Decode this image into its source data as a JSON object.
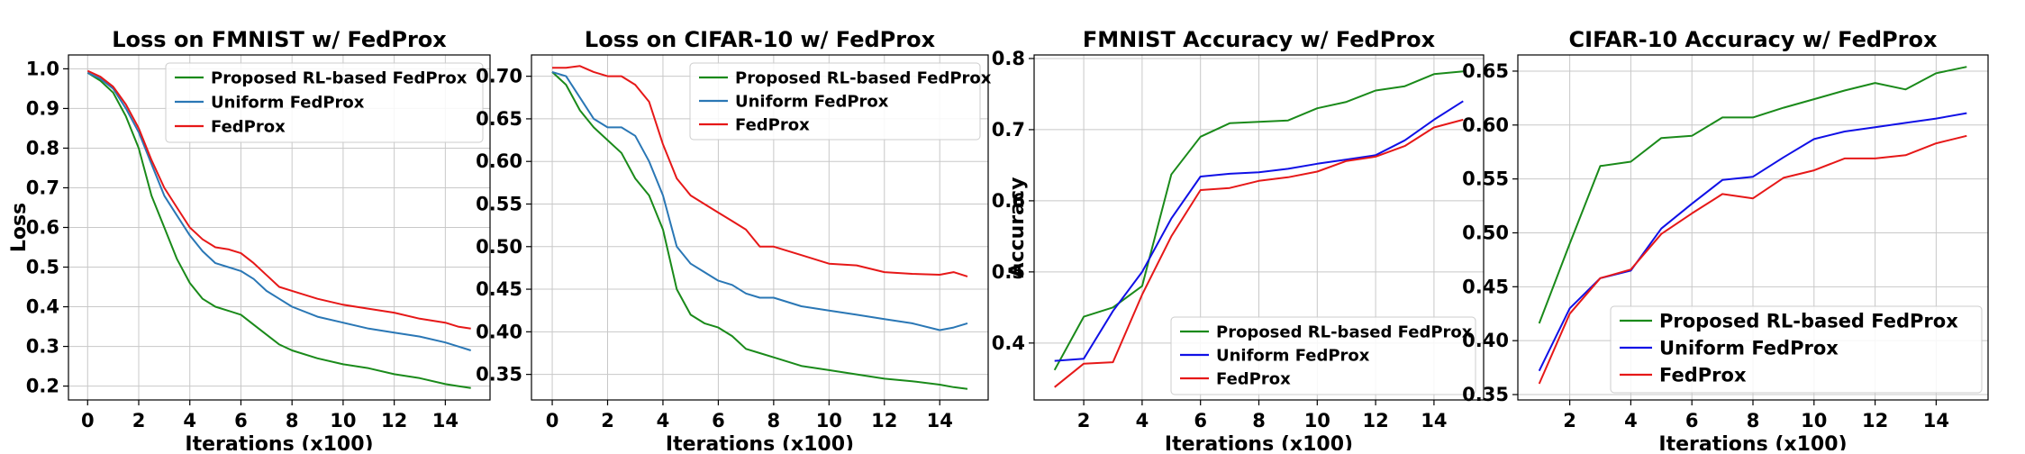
{
  "colors": {
    "proposed": "#1a8a1a",
    "uniform_steel": "#2a77b5",
    "uniform_blue": "#1010e6",
    "fedprox": "#e61818",
    "grid": "#c8c8c8",
    "axis": "#000000"
  },
  "chart_data": [
    {
      "type": "line",
      "title": "Loss on FMNIST w/ FedProx",
      "xlabel": "Iterations (x100)",
      "ylabel": "Loss",
      "xlim": [
        -0.75,
        15.75
      ],
      "ylim": [
        0.165,
        1.035
      ],
      "xticks": [
        0,
        2,
        4,
        6,
        8,
        10,
        12,
        14
      ],
      "yticks": [
        0.2,
        0.3,
        0.4,
        0.5,
        0.6,
        0.7,
        0.8,
        0.9,
        1.0
      ],
      "ytick_labels": [
        "0.2",
        "0.3",
        "0.4",
        "0.5",
        "0.6",
        "0.7",
        "0.8",
        "0.9",
        "1.0"
      ],
      "legend_position": "top-right",
      "series": [
        {
          "name": "Proposed RL-based FedProx",
          "color": "#1a8a1a",
          "x": [
            0,
            0.5,
            1,
            1.5,
            2,
            2.5,
            3,
            3.5,
            4,
            4.5,
            5,
            5.5,
            6,
            6.5,
            7,
            7.5,
            8,
            9,
            10,
            11,
            12,
            13,
            14,
            14.5,
            15
          ],
          "y": [
            0.99,
            0.97,
            0.94,
            0.88,
            0.8,
            0.68,
            0.6,
            0.52,
            0.46,
            0.42,
            0.4,
            0.39,
            0.38,
            0.355,
            0.33,
            0.305,
            0.29,
            0.27,
            0.255,
            0.245,
            0.23,
            0.22,
            0.205,
            0.2,
            0.195
          ]
        },
        {
          "name": "Uniform FedProx",
          "color": "#2a77b5",
          "x": [
            0,
            0.5,
            1,
            1.5,
            2,
            2.5,
            3,
            3.5,
            4,
            4.5,
            5,
            5.5,
            6,
            6.5,
            7,
            7.5,
            8,
            9,
            10,
            11,
            12,
            13,
            14,
            14.5,
            15
          ],
          "y": [
            0.99,
            0.975,
            0.95,
            0.9,
            0.84,
            0.76,
            0.68,
            0.63,
            0.58,
            0.54,
            0.51,
            0.5,
            0.49,
            0.47,
            0.44,
            0.42,
            0.4,
            0.375,
            0.36,
            0.345,
            0.335,
            0.325,
            0.31,
            0.3,
            0.29
          ]
        },
        {
          "name": "FedProx",
          "color": "#e61818",
          "x": [
            0,
            0.5,
            1,
            1.5,
            2,
            2.5,
            3,
            3.5,
            4,
            4.5,
            5,
            5.5,
            6,
            6.5,
            7,
            7.5,
            8,
            9,
            10,
            11,
            12,
            13,
            14,
            14.5,
            15
          ],
          "y": [
            0.995,
            0.98,
            0.955,
            0.91,
            0.85,
            0.77,
            0.7,
            0.65,
            0.6,
            0.57,
            0.55,
            0.545,
            0.535,
            0.51,
            0.48,
            0.45,
            0.44,
            0.42,
            0.405,
            0.395,
            0.385,
            0.37,
            0.36,
            0.35,
            0.345
          ]
        }
      ]
    },
    {
      "type": "line",
      "title": "Loss on CIFAR-10 w/ FedProx",
      "xlabel": "Iterations (x100)",
      "ylabel": "",
      "xlim": [
        -0.75,
        15.75
      ],
      "ylim": [
        0.32,
        0.725
      ],
      "xticks": [
        0,
        2,
        4,
        6,
        8,
        10,
        12,
        14
      ],
      "yticks": [
        0.35,
        0.4,
        0.45,
        0.5,
        0.55,
        0.6,
        0.65,
        0.7
      ],
      "ytick_labels": [
        "0.35",
        "0.40",
        "0.45",
        "0.50",
        "0.55",
        "0.60",
        "0.65",
        "0.70"
      ],
      "legend_position": "top-right",
      "series": [
        {
          "name": "Proposed RL-based FedProx",
          "color": "#1a8a1a",
          "x": [
            0,
            0.5,
            1,
            1.5,
            2,
            2.5,
            3,
            3.5,
            4,
            4.5,
            5,
            5.5,
            6,
            6.5,
            7,
            7.5,
            8,
            9,
            10,
            11,
            12,
            13,
            14,
            14.5,
            15
          ],
          "y": [
            0.705,
            0.69,
            0.66,
            0.64,
            0.625,
            0.61,
            0.58,
            0.56,
            0.52,
            0.45,
            0.42,
            0.41,
            0.405,
            0.395,
            0.38,
            0.375,
            0.37,
            0.36,
            0.355,
            0.35,
            0.345,
            0.342,
            0.338,
            0.335,
            0.333
          ]
        },
        {
          "name": "Uniform FedProx",
          "color": "#2a77b5",
          "x": [
            0,
            0.5,
            1,
            1.5,
            2,
            2.5,
            3,
            3.5,
            4,
            4.5,
            5,
            5.5,
            6,
            6.5,
            7,
            7.5,
            8,
            9,
            10,
            11,
            12,
            13,
            14,
            14.5,
            15
          ],
          "y": [
            0.705,
            0.7,
            0.675,
            0.65,
            0.64,
            0.64,
            0.63,
            0.6,
            0.56,
            0.5,
            0.48,
            0.47,
            0.46,
            0.455,
            0.445,
            0.44,
            0.44,
            0.43,
            0.425,
            0.42,
            0.415,
            0.41,
            0.402,
            0.405,
            0.41
          ]
        },
        {
          "name": "FedProx",
          "color": "#e61818",
          "x": [
            0,
            0.5,
            1,
            1.5,
            2,
            2.5,
            3,
            3.5,
            4,
            4.5,
            5,
            5.5,
            6,
            6.5,
            7,
            7.5,
            8,
            9,
            10,
            11,
            12,
            13,
            14,
            14.5,
            15
          ],
          "y": [
            0.71,
            0.71,
            0.712,
            0.705,
            0.7,
            0.7,
            0.69,
            0.67,
            0.62,
            0.58,
            0.56,
            0.55,
            0.54,
            0.53,
            0.52,
            0.5,
            0.5,
            0.49,
            0.48,
            0.478,
            0.47,
            0.468,
            0.467,
            0.47,
            0.465
          ]
        }
      ]
    },
    {
      "type": "line",
      "title": "FMNIST Accuracy w/ FedProx",
      "xlabel": "Iterations (x100)",
      "ylabel": "Accuracy",
      "xlim": [
        0.3,
        15.7
      ],
      "ylim": [
        0.32,
        0.805
      ],
      "xticks": [
        2,
        4,
        6,
        8,
        10,
        12,
        14
      ],
      "yticks": [
        0.4,
        0.5,
        0.6,
        0.7,
        0.8
      ],
      "ytick_labels": [
        "0.4",
        "0.5",
        "0.6",
        "0.7",
        "0.8"
      ],
      "legend_position": "lower-right",
      "series": [
        {
          "name": "Proposed RL-based FedProx",
          "color": "#1a8a1a",
          "x": [
            1,
            2,
            3,
            4,
            5,
            6,
            7,
            8,
            9,
            10,
            11,
            12,
            13,
            14,
            15
          ],
          "y": [
            0.362,
            0.437,
            0.45,
            0.48,
            0.637,
            0.69,
            0.709,
            0.711,
            0.713,
            0.73,
            0.739,
            0.755,
            0.761,
            0.778,
            0.782
          ]
        },
        {
          "name": "Uniform FedProx",
          "color": "#1010e6",
          "x": [
            1,
            2,
            3,
            4,
            5,
            6,
            7,
            8,
            9,
            10,
            11,
            12,
            13,
            14,
            15
          ],
          "y": [
            0.375,
            0.378,
            0.445,
            0.5,
            0.575,
            0.634,
            0.638,
            0.64,
            0.645,
            0.652,
            0.658,
            0.664,
            0.685,
            0.714,
            0.74
          ]
        },
        {
          "name": "FedProx",
          "color": "#e61818",
          "x": [
            1,
            2,
            3,
            4,
            5,
            6,
            7,
            8,
            9,
            10,
            11,
            12,
            13,
            14,
            15
          ],
          "y": [
            0.338,
            0.371,
            0.373,
            0.468,
            0.55,
            0.615,
            0.618,
            0.628,
            0.633,
            0.641,
            0.656,
            0.662,
            0.677,
            0.703,
            0.714
          ]
        }
      ]
    },
    {
      "type": "line",
      "title": "CIFAR-10 Accuracy w/ FedProx",
      "xlabel": "Iterations (x100)",
      "ylabel": "",
      "xlim": [
        0.3,
        15.7
      ],
      "ylim": [
        0.345,
        0.665
      ],
      "xticks": [
        2,
        4,
        6,
        8,
        10,
        12,
        14
      ],
      "yticks": [
        0.35,
        0.4,
        0.45,
        0.5,
        0.55,
        0.6,
        0.65
      ],
      "ytick_labels": [
        "0.35",
        "0.40",
        "0.45",
        "0.50",
        "0.55",
        "0.60",
        "0.65"
      ],
      "legend_position": "lower-right",
      "series": [
        {
          "name": "Proposed RL-based FedProx",
          "color": "#1a8a1a",
          "x": [
            1,
            2,
            3,
            4,
            5,
            6,
            7,
            8,
            9,
            10,
            11,
            12,
            13,
            14,
            15
          ],
          "y": [
            0.416,
            0.49,
            0.562,
            0.566,
            0.588,
            0.59,
            0.607,
            0.607,
            0.616,
            0.624,
            0.632,
            0.639,
            0.633,
            0.648,
            0.654
          ]
        },
        {
          "name": "Uniform FedProx",
          "color": "#1010e6",
          "x": [
            1,
            2,
            3,
            4,
            5,
            6,
            7,
            8,
            9,
            10,
            11,
            12,
            13,
            14,
            15
          ],
          "y": [
            0.372,
            0.43,
            0.458,
            0.465,
            0.504,
            0.527,
            0.549,
            0.552,
            0.57,
            0.587,
            0.594,
            0.598,
            0.602,
            0.606,
            0.611
          ]
        },
        {
          "name": "FedProx",
          "color": "#e61818",
          "x": [
            1,
            2,
            3,
            4,
            5,
            6,
            7,
            8,
            9,
            10,
            11,
            12,
            13,
            14,
            15
          ],
          "y": [
            0.36,
            0.425,
            0.458,
            0.466,
            0.499,
            0.518,
            0.536,
            0.532,
            0.551,
            0.558,
            0.569,
            0.569,
            0.572,
            0.583,
            0.59
          ]
        }
      ]
    }
  ]
}
